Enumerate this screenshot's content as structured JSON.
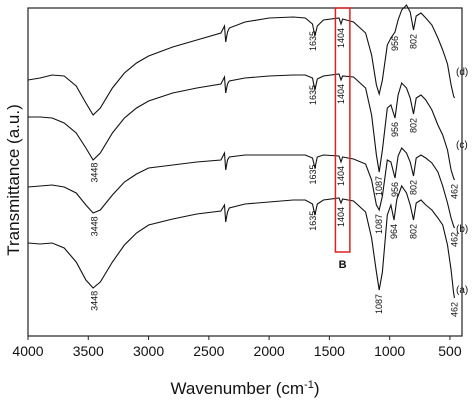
{
  "chart_data": {
    "type": "line",
    "title": "",
    "xlabel_main": "Wavenumber (cm",
    "xlabel_sup": "-1",
    "xlabel_close": ")",
    "ylabel": "Transmittance (a.u.)",
    "xlim": [
      4000,
      400
    ],
    "x_reversed": true,
    "xticks": [
      4000,
      3500,
      3000,
      2500,
      2000,
      1500,
      1000,
      500
    ],
    "grid": false,
    "highlight_box": {
      "x_range": [
        1330,
        1450
      ],
      "label": "B",
      "color": "#e02020"
    },
    "series": [
      {
        "name": "(a)",
        "offset": 0,
        "points": [
          [
            4000,
            243
          ],
          [
            3900,
            244
          ],
          [
            3800,
            243
          ],
          [
            3700,
            248
          ],
          [
            3600,
            262
          ],
          [
            3520,
            280
          ],
          [
            3460,
            288
          ],
          [
            3400,
            282
          ],
          [
            3300,
            262
          ],
          [
            3200,
            245
          ],
          [
            3100,
            233
          ],
          [
            3000,
            225
          ],
          [
            2800,
            219
          ],
          [
            2600,
            214
          ],
          [
            2400,
            211
          ],
          [
            2370,
            205
          ],
          [
            2360,
            222
          ],
          [
            2345,
            212
          ],
          [
            2330,
            208
          ],
          [
            2200,
            204
          ],
          [
            2000,
            202
          ],
          [
            1800,
            200
          ],
          [
            1700,
            200
          ],
          [
            1640,
            204
          ],
          [
            1620,
            215
          ],
          [
            1600,
            204
          ],
          [
            1550,
            200
          ],
          [
            1420,
            198
          ],
          [
            1404,
            203
          ],
          [
            1390,
            199
          ],
          [
            1300,
            201
          ],
          [
            1200,
            212
          ],
          [
            1150,
            238
          ],
          [
            1110,
            272
          ],
          [
            1087,
            290
          ],
          [
            1060,
            272
          ],
          [
            1020,
            215
          ],
          [
            990,
            205
          ],
          [
            964,
            220
          ],
          [
            940,
            199
          ],
          [
            900,
            186
          ],
          [
            860,
            193
          ],
          [
            830,
            205
          ],
          [
            802,
            220
          ],
          [
            780,
            203
          ],
          [
            740,
            200
          ],
          [
            700,
            205
          ],
          [
            650,
            210
          ],
          [
            600,
            218
          ],
          [
            560,
            225
          ],
          [
            520,
            245
          ],
          [
            490,
            270
          ],
          [
            470,
            293
          ],
          [
            462,
            298
          ]
        ]
      },
      {
        "name": "(b)",
        "offset": 0,
        "points": [
          [
            4000,
            187
          ],
          [
            3900,
            186
          ],
          [
            3800,
            185
          ],
          [
            3700,
            187
          ],
          [
            3600,
            193
          ],
          [
            3520,
            205
          ],
          [
            3460,
            213
          ],
          [
            3400,
            210
          ],
          [
            3300,
            195
          ],
          [
            3200,
            182
          ],
          [
            3100,
            174
          ],
          [
            3000,
            168
          ],
          [
            2800,
            165
          ],
          [
            2600,
            162
          ],
          [
            2400,
            160
          ],
          [
            2370,
            153
          ],
          [
            2360,
            170
          ],
          [
            2345,
            160
          ],
          [
            2330,
            157
          ],
          [
            2200,
            155
          ],
          [
            2000,
            155
          ],
          [
            1800,
            155
          ],
          [
            1700,
            155
          ],
          [
            1640,
            158
          ],
          [
            1620,
            168
          ],
          [
            1600,
            157
          ],
          [
            1550,
            155
          ],
          [
            1420,
            156
          ],
          [
            1404,
            162
          ],
          [
            1390,
            157
          ],
          [
            1300,
            159
          ],
          [
            1200,
            164
          ],
          [
            1150,
            180
          ],
          [
            1110,
            205
          ],
          [
            1087,
            210
          ],
          [
            1060,
            196
          ],
          [
            1020,
            160
          ],
          [
            990,
            162
          ],
          [
            956,
            178
          ],
          [
            930,
            156
          ],
          [
            900,
            148
          ],
          [
            860,
            153
          ],
          [
            830,
            162
          ],
          [
            802,
            176
          ],
          [
            780,
            158
          ],
          [
            740,
            155
          ],
          [
            700,
            158
          ],
          [
            650,
            163
          ],
          [
            600,
            172
          ],
          [
            560,
            186
          ],
          [
            520,
            203
          ],
          [
            490,
            218
          ],
          [
            470,
            226
          ],
          [
            462,
            228
          ]
        ]
      },
      {
        "name": "(c)",
        "offset": 0,
        "points": [
          [
            4000,
            117
          ],
          [
            3900,
            117
          ],
          [
            3800,
            118
          ],
          [
            3700,
            123
          ],
          [
            3600,
            133
          ],
          [
            3520,
            148
          ],
          [
            3460,
            160
          ],
          [
            3400,
            153
          ],
          [
            3300,
            133
          ],
          [
            3200,
            118
          ],
          [
            3100,
            108
          ],
          [
            3000,
            101
          ],
          [
            2800,
            93
          ],
          [
            2600,
            88
          ],
          [
            2400,
            84
          ],
          [
            2370,
            77
          ],
          [
            2360,
            93
          ],
          [
            2345,
            84
          ],
          [
            2330,
            81
          ],
          [
            2200,
            78
          ],
          [
            2000,
            76
          ],
          [
            1800,
            75
          ],
          [
            1700,
            75
          ],
          [
            1640,
            78
          ],
          [
            1620,
            90
          ],
          [
            1600,
            79
          ],
          [
            1550,
            76
          ],
          [
            1420,
            74
          ],
          [
            1404,
            80
          ],
          [
            1390,
            76
          ],
          [
            1300,
            77
          ],
          [
            1200,
            88
          ],
          [
            1150,
            115
          ],
          [
            1110,
            155
          ],
          [
            1087,
            172
          ],
          [
            1060,
            150
          ],
          [
            1020,
            108
          ],
          [
            990,
            105
          ],
          [
            956,
            118
          ],
          [
            930,
            95
          ],
          [
            900,
            83
          ],
          [
            860,
            88
          ],
          [
            830,
            98
          ],
          [
            802,
            114
          ],
          [
            780,
            98
          ],
          [
            740,
            95
          ],
          [
            700,
            100
          ],
          [
            650,
            110
          ],
          [
            600,
            125
          ],
          [
            560,
            135
          ],
          [
            520,
            150
          ],
          [
            490,
            170
          ],
          [
            470,
            178
          ],
          [
            462,
            180
          ]
        ]
      },
      {
        "name": "(d)",
        "offset": 0,
        "points": [
          [
            4000,
            80
          ],
          [
            3900,
            78
          ],
          [
            3800,
            75
          ],
          [
            3700,
            76
          ],
          [
            3600,
            86
          ],
          [
            3520,
            103
          ],
          [
            3460,
            115
          ],
          [
            3400,
            108
          ],
          [
            3300,
            88
          ],
          [
            3200,
            73
          ],
          [
            3100,
            63
          ],
          [
            3000,
            56
          ],
          [
            2800,
            47
          ],
          [
            2600,
            40
          ],
          [
            2400,
            33
          ],
          [
            2370,
            26
          ],
          [
            2360,
            42
          ],
          [
            2345,
            32
          ],
          [
            2330,
            28
          ],
          [
            2200,
            22
          ],
          [
            2000,
            18
          ],
          [
            1800,
            17
          ],
          [
            1700,
            18
          ],
          [
            1640,
            24
          ],
          [
            1620,
            36
          ],
          [
            1600,
            26
          ],
          [
            1550,
            20
          ],
          [
            1420,
            18
          ],
          [
            1404,
            24
          ],
          [
            1390,
            19
          ],
          [
            1300,
            22
          ],
          [
            1200,
            33
          ],
          [
            1150,
            55
          ],
          [
            1110,
            85
          ],
          [
            1087,
            94
          ],
          [
            1060,
            80
          ],
          [
            1020,
            45
          ],
          [
            990,
            38
          ],
          [
            956,
            32
          ],
          [
            930,
            20
          ],
          [
            900,
            10
          ],
          [
            860,
            5
          ],
          [
            830,
            12
          ],
          [
            802,
            30
          ],
          [
            780,
            16
          ],
          [
            740,
            13
          ],
          [
            700,
            18
          ],
          [
            650,
            25
          ],
          [
            600,
            38
          ],
          [
            560,
            50
          ],
          [
            520,
            64
          ],
          [
            490,
            85
          ],
          [
            470,
            96
          ],
          [
            462,
            98
          ]
        ]
      }
    ],
    "y_units_note": "none",
    "annotations": [
      {
        "text": "3448",
        "x": 3448,
        "series": 0
      },
      {
        "text": "1635",
        "x": 1635,
        "series": 0
      },
      {
        "text": "1404",
        "x": 1404,
        "series": 0
      },
      {
        "text": "1087",
        "x": 1087,
        "series": 0
      },
      {
        "text": "964",
        "x": 964,
        "series": 0
      },
      {
        "text": "802",
        "x": 802,
        "series": 0
      },
      {
        "text": "462",
        "x": 462,
        "series": 0
      },
      {
        "text": "3448",
        "x": 3448,
        "series": 1
      },
      {
        "text": "1635",
        "x": 1635,
        "series": 1
      },
      {
        "text": "1404",
        "x": 1404,
        "series": 1
      },
      {
        "text": "1087",
        "x": 1087,
        "series": 1
      },
      {
        "text": "956",
        "x": 956,
        "series": 1
      },
      {
        "text": "802",
        "x": 802,
        "series": 1
      },
      {
        "text": "462",
        "x": 462,
        "series": 1
      },
      {
        "text": "3448",
        "x": 3448,
        "series": 2
      },
      {
        "text": "1635",
        "x": 1635,
        "series": 2
      },
      {
        "text": "1404",
        "x": 1404,
        "series": 2
      },
      {
        "text": "1087",
        "x": 1087,
        "series": 2
      },
      {
        "text": "956",
        "x": 956,
        "series": 2
      },
      {
        "text": "802",
        "x": 802,
        "series": 2
      },
      {
        "text": "462",
        "x": 462,
        "series": 2
      },
      {
        "text": "1635",
        "x": 1635,
        "series": 3
      },
      {
        "text": "1404",
        "x": 1404,
        "series": 3
      },
      {
        "text": "956",
        "x": 956,
        "series": 3
      },
      {
        "text": "802",
        "x": 802,
        "series": 3
      }
    ]
  }
}
